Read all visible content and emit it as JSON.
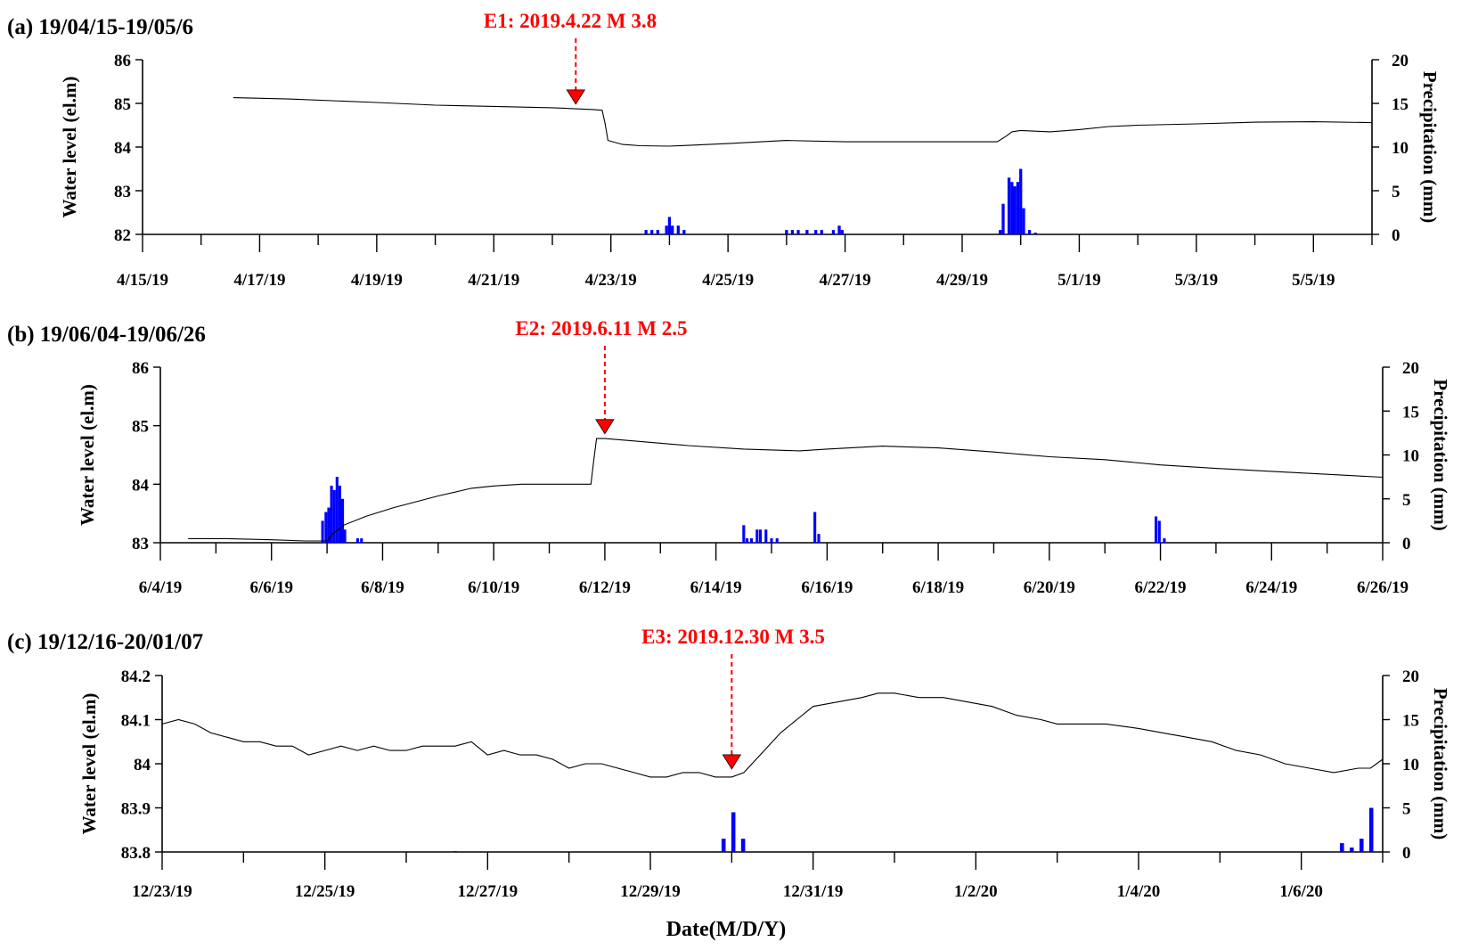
{
  "figure": {
    "xlabel": "Date(M/D/Y)"
  },
  "chart_data": [
    {
      "type": "line",
      "panel_label": "(a) 19/04/15-19/05/6",
      "ylabel": "Water level (el.m)",
      "y2label": "Precipitation (mm)",
      "xlim": [
        0,
        21
      ],
      "xticks": [
        "4/15/19",
        "4/17/19",
        "4/19/19",
        "4/21/19",
        "4/23/19",
        "4/25/19",
        "4/27/19",
        "4/29/19",
        "5/1/19",
        "5/3/19",
        "5/5/19"
      ],
      "xtick_step": 2,
      "minor_step": 1,
      "ylim": [
        82,
        86
      ],
      "yticks": [
        "82",
        "83",
        "84",
        "85",
        "86"
      ],
      "y2lim": [
        0,
        20
      ],
      "y2ticks": [
        "0",
        "5",
        "10",
        "15",
        "20"
      ],
      "water_level": [
        [
          1.55,
          85.13
        ],
        [
          2.5,
          85.1
        ],
        [
          4,
          85.02
        ],
        [
          5,
          84.96
        ],
        [
          6,
          84.93
        ],
        [
          7,
          84.9
        ],
        [
          7.7,
          84.86
        ],
        [
          7.85,
          84.84
        ],
        [
          7.9,
          84.55
        ],
        [
          7.95,
          84.15
        ],
        [
          8.2,
          84.06
        ],
        [
          8.5,
          84.03
        ],
        [
          9,
          84.02
        ],
        [
          10,
          84.08
        ],
        [
          11,
          84.15
        ],
        [
          12,
          84.12
        ],
        [
          13,
          84.12
        ],
        [
          14,
          84.12
        ],
        [
          14.6,
          84.12
        ],
        [
          14.75,
          84.25
        ],
        [
          14.85,
          84.35
        ],
        [
          15,
          84.38
        ],
        [
          15.5,
          84.35
        ],
        [
          16,
          84.4
        ],
        [
          16.5,
          84.47
        ],
        [
          17,
          84.5
        ],
        [
          18,
          84.53
        ],
        [
          19,
          84.57
        ],
        [
          20,
          84.58
        ],
        [
          21,
          84.56
        ]
      ],
      "precipitation": [
        [
          8.6,
          0.5
        ],
        [
          8.7,
          0.5
        ],
        [
          8.8,
          0.5
        ],
        [
          8.95,
          1
        ],
        [
          9.0,
          2
        ],
        [
          9.05,
          1
        ],
        [
          9.15,
          1
        ],
        [
          9.25,
          0.5
        ],
        [
          11.0,
          0.5
        ],
        [
          11.1,
          0.5
        ],
        [
          11.2,
          0.5
        ],
        [
          11.35,
          0.5
        ],
        [
          11.5,
          0.5
        ],
        [
          11.6,
          0.5
        ],
        [
          11.8,
          0.5
        ],
        [
          11.9,
          1
        ],
        [
          11.95,
          0.5
        ],
        [
          14.65,
          0.5
        ],
        [
          14.7,
          3.5
        ],
        [
          14.8,
          6.5
        ],
        [
          14.85,
          6
        ],
        [
          14.9,
          5.5
        ],
        [
          14.95,
          6
        ],
        [
          15.0,
          7.5
        ],
        [
          15.05,
          3
        ],
        [
          15.15,
          0.5
        ],
        [
          15.25,
          0.2
        ]
      ],
      "event": {
        "label": "E1: 2019.4.22 M 3.8",
        "x": 7.4,
        "y": 84.9
      }
    },
    {
      "type": "line",
      "panel_label": "(b) 19/06/04-19/06/26",
      "ylabel": "Water level (el.m)",
      "y2label": "Precipitation (mm)",
      "xlim": [
        0,
        22
      ],
      "xticks": [
        "6/4/19",
        "6/6/19",
        "6/8/19",
        "6/10/19",
        "6/12/19",
        "6/14/19",
        "6/16/19",
        "6/18/19",
        "6/20/19",
        "6/22/19",
        "6/24/19",
        "6/26/19"
      ],
      "xtick_step": 2,
      "minor_step": 1,
      "ylim": [
        83,
        86
      ],
      "yticks": [
        "83",
        "84",
        "85",
        "86"
      ],
      "y2lim": [
        0,
        20
      ],
      "y2ticks": [
        "0",
        "5",
        "10",
        "15",
        "20"
      ],
      "water_level": [
        [
          0.5,
          83.07
        ],
        [
          1.2,
          83.07
        ],
        [
          2,
          83.05
        ],
        [
          2.6,
          83.03
        ],
        [
          3.0,
          83.03
        ],
        [
          3.1,
          83.15
        ],
        [
          3.3,
          83.3
        ],
        [
          3.7,
          83.45
        ],
        [
          4.2,
          83.6
        ],
        [
          5,
          83.8
        ],
        [
          5.6,
          83.93
        ],
        [
          6,
          83.97
        ],
        [
          6.5,
          84.0
        ],
        [
          7,
          84.0
        ],
        [
          7.5,
          84.0
        ],
        [
          7.75,
          84.0
        ],
        [
          7.8,
          84.4
        ],
        [
          7.85,
          84.78
        ],
        [
          8,
          84.78
        ],
        [
          8.5,
          84.74
        ],
        [
          9.5,
          84.66
        ],
        [
          10.5,
          84.6
        ],
        [
          11.5,
          84.57
        ],
        [
          12,
          84.6
        ],
        [
          13,
          84.65
        ],
        [
          14,
          84.62
        ],
        [
          15,
          84.55
        ],
        [
          16,
          84.47
        ],
        [
          17,
          84.42
        ],
        [
          18,
          84.33
        ],
        [
          19,
          84.27
        ],
        [
          20,
          84.22
        ],
        [
          21,
          84.17
        ],
        [
          22,
          84.12
        ]
      ],
      "precipitation": [
        [
          2.92,
          2.5
        ],
        [
          2.98,
          3.5
        ],
        [
          3.03,
          4
        ],
        [
          3.08,
          6.5
        ],
        [
          3.13,
          6
        ],
        [
          3.18,
          7.5
        ],
        [
          3.23,
          6.5
        ],
        [
          3.28,
          5
        ],
        [
          3.32,
          1.5
        ],
        [
          3.55,
          0.5
        ],
        [
          3.62,
          0.5
        ],
        [
          10.5,
          2
        ],
        [
          10.56,
          0.5
        ],
        [
          10.64,
          0.5
        ],
        [
          10.74,
          1.5
        ],
        [
          10.8,
          1.5
        ],
        [
          10.9,
          1.5
        ],
        [
          11.0,
          0.5
        ],
        [
          11.1,
          0.5
        ],
        [
          11.78,
          3.5
        ],
        [
          11.85,
          1
        ],
        [
          17.92,
          3
        ],
        [
          17.98,
          2.5
        ],
        [
          18.07,
          0.5
        ]
      ],
      "event": {
        "label": "E2: 2019.6.11 M 2.5",
        "x": 8,
        "y": 84.8
      }
    },
    {
      "type": "line",
      "panel_label": "(c) 19/12/16-20/01/07",
      "ylabel": "Water level (el.m)",
      "y2label": "Precipitation (mm)",
      "xlim": [
        0,
        15
      ],
      "xticks": [
        "12/23/19",
        "12/25/19",
        "12/27/19",
        "12/29/19",
        "12/31/19",
        "1/2/20",
        "1/4/20",
        "1/6/20"
      ],
      "xtick_step": 2,
      "minor_step": 1,
      "ylim": [
        83.8,
        84.2
      ],
      "yticks": [
        "83.8",
        "83.9",
        "84",
        "84.1",
        "84.2"
      ],
      "y2lim": [
        0,
        20
      ],
      "y2ticks": [
        "0",
        "5",
        "10",
        "15",
        "20"
      ],
      "water_level": [
        [
          0,
          84.09
        ],
        [
          0.2,
          84.1
        ],
        [
          0.4,
          84.09
        ],
        [
          0.6,
          84.07
        ],
        [
          0.8,
          84.06
        ],
        [
          1.0,
          84.05
        ],
        [
          1.2,
          84.05
        ],
        [
          1.4,
          84.04
        ],
        [
          1.6,
          84.04
        ],
        [
          1.8,
          84.02
        ],
        [
          2.0,
          84.03
        ],
        [
          2.2,
          84.04
        ],
        [
          2.4,
          84.03
        ],
        [
          2.6,
          84.04
        ],
        [
          2.8,
          84.03
        ],
        [
          3.0,
          84.03
        ],
        [
          3.2,
          84.04
        ],
        [
          3.4,
          84.04
        ],
        [
          3.6,
          84.04
        ],
        [
          3.8,
          84.05
        ],
        [
          4.0,
          84.02
        ],
        [
          4.2,
          84.03
        ],
        [
          4.4,
          84.02
        ],
        [
          4.6,
          84.02
        ],
        [
          4.8,
          84.01
        ],
        [
          5.0,
          83.99
        ],
        [
          5.2,
          84.0
        ],
        [
          5.4,
          84.0
        ],
        [
          5.6,
          83.99
        ],
        [
          5.8,
          83.98
        ],
        [
          6.0,
          83.97
        ],
        [
          6.2,
          83.97
        ],
        [
          6.4,
          83.98
        ],
        [
          6.6,
          83.98
        ],
        [
          6.8,
          83.97
        ],
        [
          7.0,
          83.97
        ],
        [
          7.15,
          83.98
        ],
        [
          7.4,
          84.03
        ],
        [
          7.6,
          84.07
        ],
        [
          7.8,
          84.1
        ],
        [
          8.0,
          84.13
        ],
        [
          8.3,
          84.14
        ],
        [
          8.6,
          84.15
        ],
        [
          8.8,
          84.16
        ],
        [
          9.0,
          84.16
        ],
        [
          9.3,
          84.15
        ],
        [
          9.6,
          84.15
        ],
        [
          9.9,
          84.14
        ],
        [
          10.2,
          84.13
        ],
        [
          10.5,
          84.11
        ],
        [
          10.8,
          84.1
        ],
        [
          11.0,
          84.09
        ],
        [
          11.3,
          84.09
        ],
        [
          11.6,
          84.09
        ],
        [
          12.0,
          84.08
        ],
        [
          12.3,
          84.07
        ],
        [
          12.6,
          84.06
        ],
        [
          12.9,
          84.05
        ],
        [
          13.2,
          84.03
        ],
        [
          13.5,
          84.02
        ],
        [
          13.8,
          84.0
        ],
        [
          14.1,
          83.99
        ],
        [
          14.4,
          83.98
        ],
        [
          14.7,
          83.99
        ],
        [
          14.85,
          83.99
        ],
        [
          15.0,
          84.01
        ]
      ],
      "precipitation": [
        [
          3.6,
          0.1
        ],
        [
          6.9,
          1.5
        ],
        [
          7.02,
          4.5
        ],
        [
          7.14,
          1.5
        ],
        [
          14.5,
          1
        ],
        [
          14.62,
          0.5
        ],
        [
          14.74,
          1.5
        ],
        [
          14.86,
          5
        ]
      ],
      "event": {
        "label": "E3: 2019.12.30 M 3.5",
        "x": 7.0,
        "y": 83.98
      }
    }
  ]
}
